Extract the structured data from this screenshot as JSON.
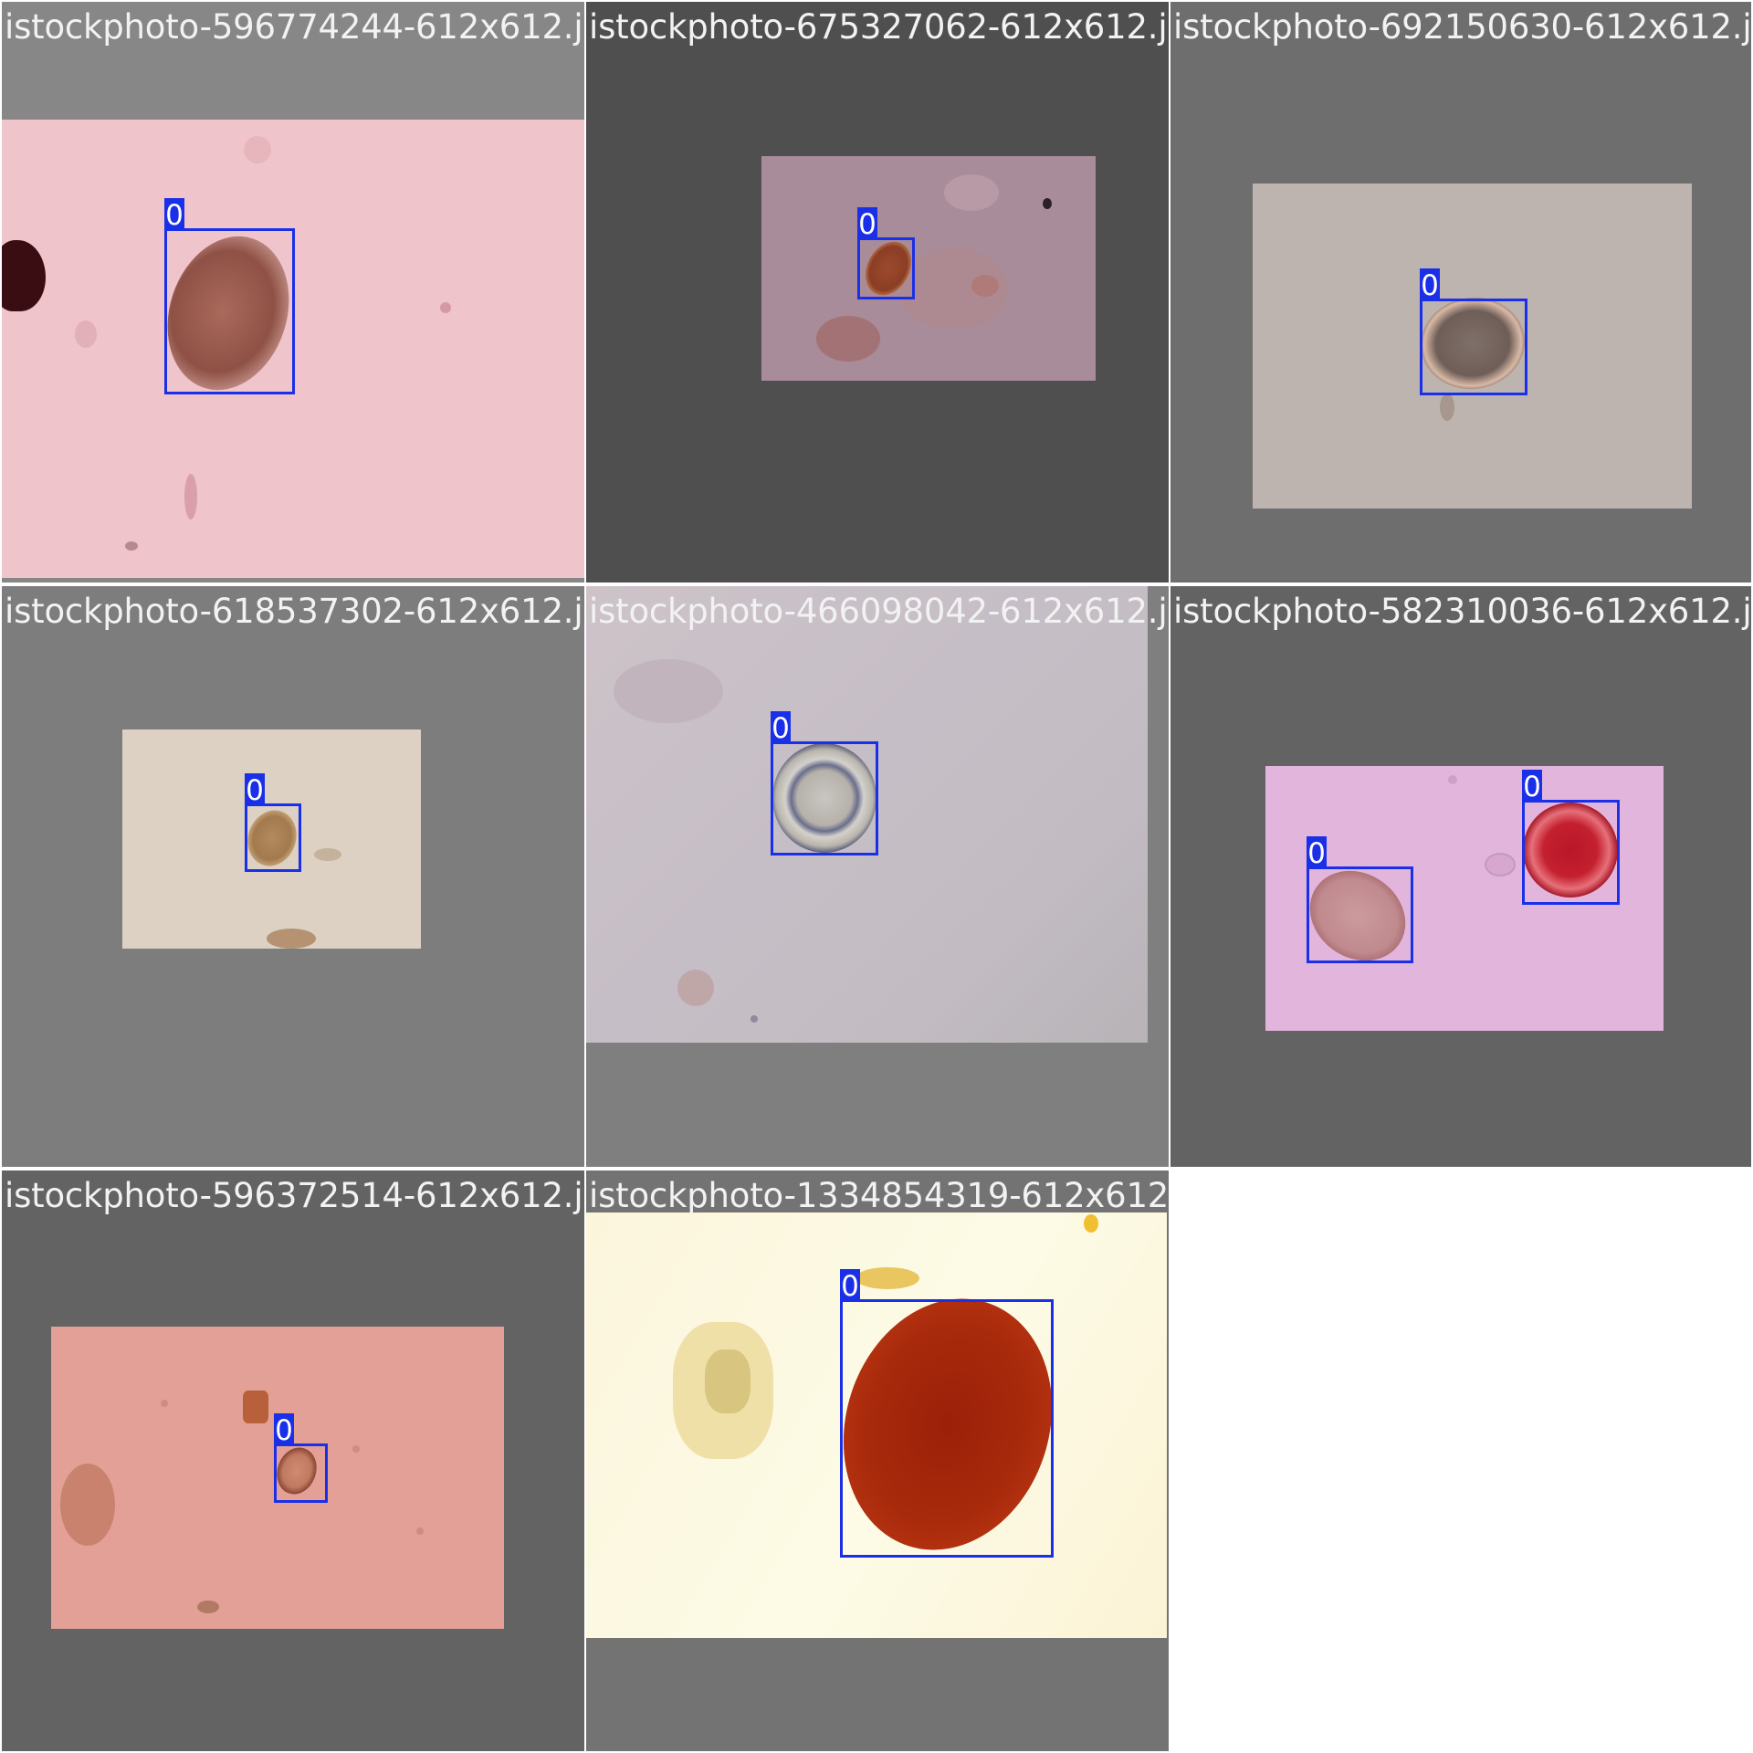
{
  "grid": {
    "tiles": [
      {
        "filename": "istockphoto-596774244-612x612.jpg",
        "detections": [
          {
            "class_label": "0"
          }
        ]
      },
      {
        "filename": "istockphoto-675327062-612x612.jpg",
        "detections": [
          {
            "class_label": "0"
          }
        ]
      },
      {
        "filename": "istockphoto-692150630-612x612.jpg",
        "detections": [
          {
            "class_label": "0"
          }
        ]
      },
      {
        "filename": "istockphoto-618537302-612x612.jpg",
        "detections": [
          {
            "class_label": "0"
          }
        ]
      },
      {
        "filename": "istockphoto-466098042-612x612.jpg",
        "detections": [
          {
            "class_label": "0"
          }
        ]
      },
      {
        "filename": "istockphoto-582310036-612x612.jpg",
        "detections": [
          {
            "class_label": "0"
          },
          {
            "class_label": "0"
          }
        ]
      },
      {
        "filename": "istockphoto-596372514-612x612.jpg",
        "detections": [
          {
            "class_label": "0"
          }
        ]
      },
      {
        "filename": "istockphoto-1334854319-612x612.jpg",
        "detections": [
          {
            "class_label": "0"
          }
        ]
      }
    ]
  },
  "colors": {
    "box": "#1a2fe8",
    "label_text": "#f2f2f2",
    "background": "#ffffff"
  }
}
